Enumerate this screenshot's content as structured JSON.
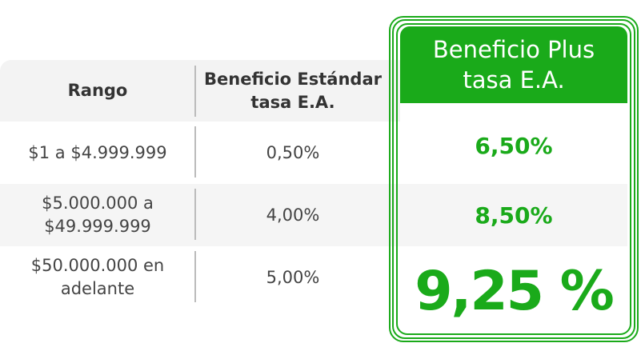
{
  "table": {
    "header": [
      "Rango",
      "Beneficio Estándar tasa E.A.",
      "Beneficio Plus tasa E.A."
    ],
    "rows": [
      [
        "$1 a $4.999.999",
        "0,50%",
        "6,50%"
      ],
      [
        "$5.000.000 a $49.999.999",
        "4,00%",
        "8,50%"
      ],
      [
        "$50.000.000 en adelante",
        "5,00%",
        "9,25 %"
      ]
    ]
  }
}
